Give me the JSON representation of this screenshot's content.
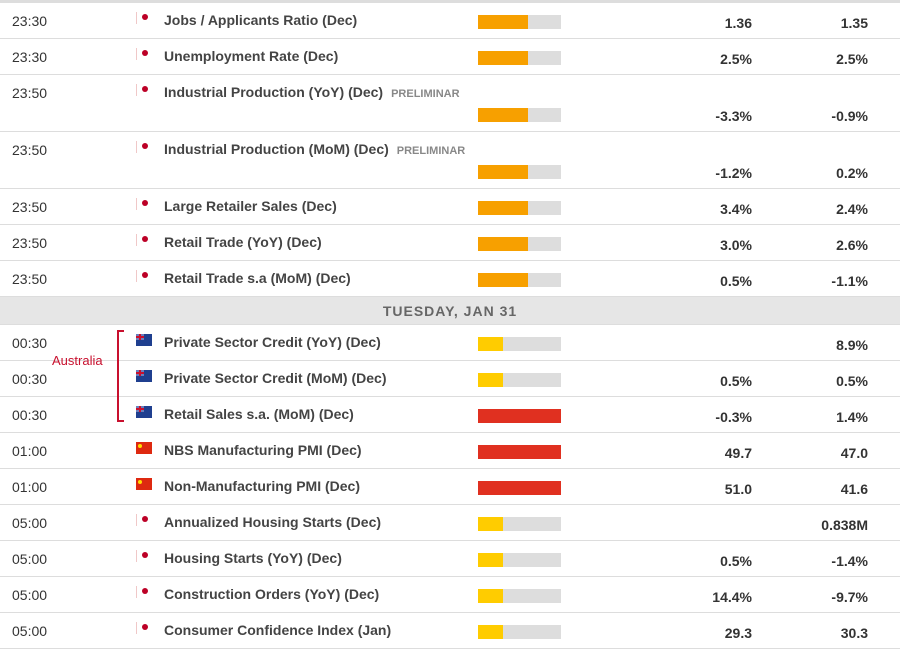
{
  "colors": {
    "medium": "#f7a000",
    "low": "#ffcc00",
    "high": "#e03020",
    "track": "#dddddd",
    "annotation": "#c8102e"
  },
  "annotation": "Australia",
  "day_header": "TUESDAY, JAN 31",
  "rows_before": [
    {
      "time": "23:30",
      "country": "jp",
      "event": "Jobs / Applicants Ratio (Dec)",
      "tag": "",
      "volatility": "medium",
      "level": 0.6,
      "v1": "1.36",
      "v2": "1.35"
    },
    {
      "time": "23:30",
      "country": "jp",
      "event": "Unemployment Rate (Dec)",
      "tag": "",
      "volatility": "medium",
      "level": 0.6,
      "v1": "2.5%",
      "v2": "2.5%"
    },
    {
      "time": "23:50",
      "country": "jp",
      "event": "Industrial Production (YoY) (Dec)",
      "tag": "PRELIMINAR",
      "volatility": "medium",
      "level": 0.6,
      "v1": "-3.3%",
      "v2": "-0.9%"
    },
    {
      "time": "23:50",
      "country": "jp",
      "event": "Industrial Production (MoM) (Dec)",
      "tag": "PRELIMINAR",
      "volatility": "medium",
      "level": 0.6,
      "v1": "-1.2%",
      "v2": "0.2%"
    },
    {
      "time": "23:50",
      "country": "jp",
      "event": "Large Retailer Sales (Dec)",
      "tag": "",
      "volatility": "medium",
      "level": 0.6,
      "v1": "3.4%",
      "v2": "2.4%"
    },
    {
      "time": "23:50",
      "country": "jp",
      "event": "Retail Trade (YoY) (Dec)",
      "tag": "",
      "volatility": "medium",
      "level": 0.6,
      "v1": "3.0%",
      "v2": "2.6%"
    },
    {
      "time": "23:50",
      "country": "jp",
      "event": "Retail Trade s.a (MoM) (Dec)",
      "tag": "",
      "volatility": "medium",
      "level": 0.6,
      "v1": "0.5%",
      "v2": "-1.1%"
    }
  ],
  "rows_after": [
    {
      "time": "00:30",
      "country": "au",
      "event": "Private Sector Credit (YoY) (Dec)",
      "tag": "",
      "volatility": "low",
      "level": 0.3,
      "v1": "",
      "v2": "8.9%"
    },
    {
      "time": "00:30",
      "country": "au",
      "event": "Private Sector Credit (MoM) (Dec)",
      "tag": "",
      "volatility": "low",
      "level": 0.3,
      "v1": "0.5%",
      "v2": "0.5%"
    },
    {
      "time": "00:30",
      "country": "au",
      "event": "Retail Sales s.a. (MoM) (Dec)",
      "tag": "",
      "volatility": "high",
      "level": 1,
      "v1": "-0.3%",
      "v2": "1.4%"
    },
    {
      "time": "01:00",
      "country": "cn",
      "event": "NBS Manufacturing PMI (Dec)",
      "tag": "",
      "volatility": "high",
      "level": 1,
      "v1": "49.7",
      "v2": "47.0"
    },
    {
      "time": "01:00",
      "country": "cn",
      "event": "Non-Manufacturing PMI (Dec)",
      "tag": "",
      "volatility": "high",
      "level": 1,
      "v1": "51.0",
      "v2": "41.6"
    },
    {
      "time": "05:00",
      "country": "jp",
      "event": "Annualized Housing Starts (Dec)",
      "tag": "",
      "volatility": "low",
      "level": 0.3,
      "v1": "",
      "v2": "0.838M"
    },
    {
      "time": "05:00",
      "country": "jp",
      "event": "Housing Starts (YoY) (Dec)",
      "tag": "",
      "volatility": "low",
      "level": 0.3,
      "v1": "0.5%",
      "v2": "-1.4%"
    },
    {
      "time": "05:00",
      "country": "jp",
      "event": "Construction Orders (YoY) (Dec)",
      "tag": "",
      "volatility": "low",
      "level": 0.3,
      "v1": "14.4%",
      "v2": "-9.7%"
    },
    {
      "time": "05:00",
      "country": "jp",
      "event": "Consumer Confidence Index (Jan)",
      "tag": "",
      "volatility": "low",
      "level": 0.3,
      "v1": "29.3",
      "v2": "30.3"
    }
  ]
}
